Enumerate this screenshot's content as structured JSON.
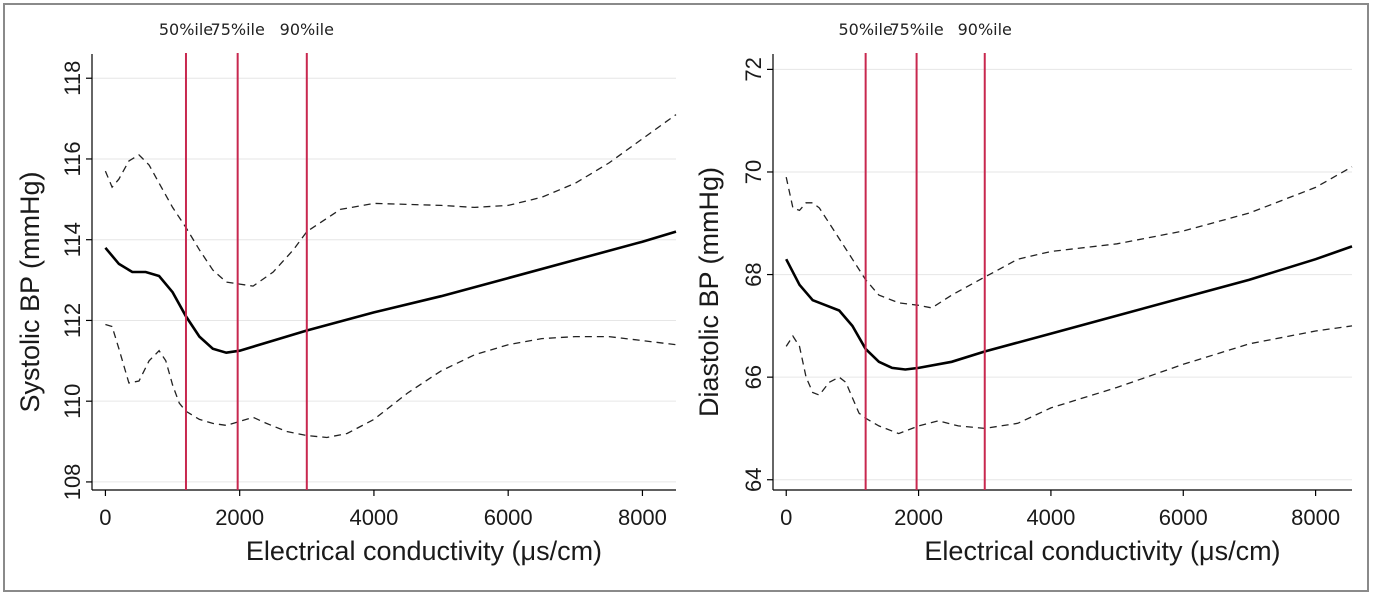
{
  "figure": {
    "border_color": "#8a8a8a"
  },
  "chart_data": [
    {
      "type": "line",
      "xlabel": "Electrical conductivity (μs/cm)",
      "ylabel": "Systolic BP (mmHg)",
      "xlim": [
        -200,
        8500
      ],
      "ylim": [
        107.8,
        118.6
      ],
      "x_ticks": [
        0,
        2000,
        4000,
        6000,
        8000
      ],
      "y_ticks": [
        108,
        110,
        112,
        114,
        116,
        118
      ],
      "grid": true,
      "percentile_lines": [
        {
          "label": "50%ile",
          "x": 1200
        },
        {
          "label": "75%ile",
          "x": 1970
        },
        {
          "label": "90%ile",
          "x": 3000
        }
      ],
      "colors": {
        "estimate": "#000000",
        "ci": "#222222",
        "percentile": "#c8284f",
        "grid": "#e6e6e6"
      },
      "series": [
        {
          "role": "estimate",
          "style": "solid",
          "x": [
            0,
            200,
            400,
            600,
            800,
            1000,
            1200,
            1400,
            1600,
            1800,
            2000,
            2500,
            3000,
            4000,
            5000,
            6000,
            7000,
            8000,
            8500
          ],
          "y": [
            113.8,
            113.4,
            113.2,
            113.2,
            113.1,
            112.7,
            112.1,
            111.6,
            111.3,
            111.2,
            111.25,
            111.5,
            111.75,
            112.2,
            112.6,
            113.05,
            113.5,
            113.95,
            114.2
          ]
        },
        {
          "role": "upper_ci",
          "style": "dashed",
          "x": [
            0,
            100,
            200,
            350,
            500,
            650,
            800,
            1000,
            1200,
            1400,
            1600,
            1800,
            2000,
            2200,
            2500,
            2800,
            3000,
            3500,
            4000,
            5000,
            5500,
            6000,
            6500,
            7000,
            7500,
            8000,
            8500
          ],
          "y": [
            115.7,
            115.3,
            115.5,
            115.95,
            116.1,
            115.85,
            115.4,
            114.8,
            114.3,
            113.75,
            113.25,
            112.95,
            112.9,
            112.85,
            113.2,
            113.75,
            114.2,
            114.75,
            114.9,
            114.85,
            114.8,
            114.85,
            115.05,
            115.4,
            115.9,
            116.5,
            117.1
          ]
        },
        {
          "role": "lower_ci",
          "style": "dashed",
          "x": [
            0,
            100,
            200,
            350,
            500,
            650,
            800,
            900,
            1000,
            1100,
            1200,
            1400,
            1600,
            1800,
            2000,
            2200,
            2400,
            2700,
            3000,
            3300,
            3600,
            4000,
            4500,
            5000,
            5500,
            6000,
            6500,
            7000,
            7500,
            8000,
            8500
          ],
          "y": [
            111.9,
            111.85,
            111.3,
            110.45,
            110.5,
            111.0,
            111.25,
            111.0,
            110.4,
            109.95,
            109.75,
            109.55,
            109.45,
            109.4,
            109.5,
            109.6,
            109.45,
            109.25,
            109.15,
            109.1,
            109.2,
            109.55,
            110.2,
            110.75,
            111.15,
            111.4,
            111.55,
            111.6,
            111.6,
            111.5,
            111.4
          ]
        }
      ]
    },
    {
      "type": "line",
      "xlabel": "Electrical conductivity (μs/cm)",
      "ylabel": "Diastolic BP (mmHg)",
      "xlim": [
        -200,
        8550
      ],
      "ylim": [
        63.8,
        72.3
      ],
      "x_ticks": [
        0,
        2000,
        4000,
        6000,
        8000
      ],
      "y_ticks": [
        64,
        66,
        68,
        70,
        72
      ],
      "grid": true,
      "percentile_lines": [
        {
          "label": "50%ile",
          "x": 1200
        },
        {
          "label": "75%ile",
          "x": 1970
        },
        {
          "label": "90%ile",
          "x": 3000
        }
      ],
      "colors": {
        "estimate": "#000000",
        "ci": "#222222",
        "percentile": "#c8284f",
        "grid": "#e6e6e6"
      },
      "series": [
        {
          "role": "estimate",
          "style": "solid",
          "x": [
            0,
            200,
            400,
            600,
            800,
            1000,
            1200,
            1400,
            1600,
            1800,
            2000,
            2500,
            3000,
            4000,
            5000,
            6000,
            7000,
            8000,
            8550
          ],
          "y": [
            68.3,
            67.8,
            67.5,
            67.4,
            67.3,
            67.0,
            66.55,
            66.3,
            66.18,
            66.15,
            66.18,
            66.3,
            66.5,
            66.85,
            67.2,
            67.55,
            67.9,
            68.3,
            68.55
          ]
        },
        {
          "role": "upper_ci",
          "style": "dashed",
          "x": [
            0,
            100,
            200,
            300,
            400,
            500,
            700,
            900,
            1100,
            1200,
            1400,
            1700,
            2000,
            2200,
            2500,
            3000,
            3500,
            4000,
            5000,
            6000,
            7000,
            8000,
            8550
          ],
          "y": [
            69.9,
            69.3,
            69.25,
            69.4,
            69.4,
            69.3,
            68.9,
            68.5,
            68.1,
            67.9,
            67.6,
            67.45,
            67.4,
            67.35,
            67.6,
            67.95,
            68.3,
            68.45,
            68.6,
            68.85,
            69.2,
            69.7,
            70.1
          ]
        },
        {
          "role": "lower_ci",
          "style": "dashed",
          "x": [
            0,
            100,
            200,
            300,
            400,
            500,
            650,
            800,
            900,
            1000,
            1100,
            1200,
            1400,
            1700,
            2000,
            2300,
            2600,
            3000,
            3500,
            4000,
            5000,
            6000,
            7000,
            8000,
            8550
          ],
          "y": [
            66.6,
            66.8,
            66.6,
            66.0,
            65.7,
            65.65,
            65.9,
            66.0,
            65.9,
            65.6,
            65.3,
            65.2,
            65.05,
            64.9,
            65.05,
            65.15,
            65.05,
            65.0,
            65.1,
            65.4,
            65.8,
            66.25,
            66.65,
            66.9,
            67.0
          ]
        }
      ]
    }
  ]
}
